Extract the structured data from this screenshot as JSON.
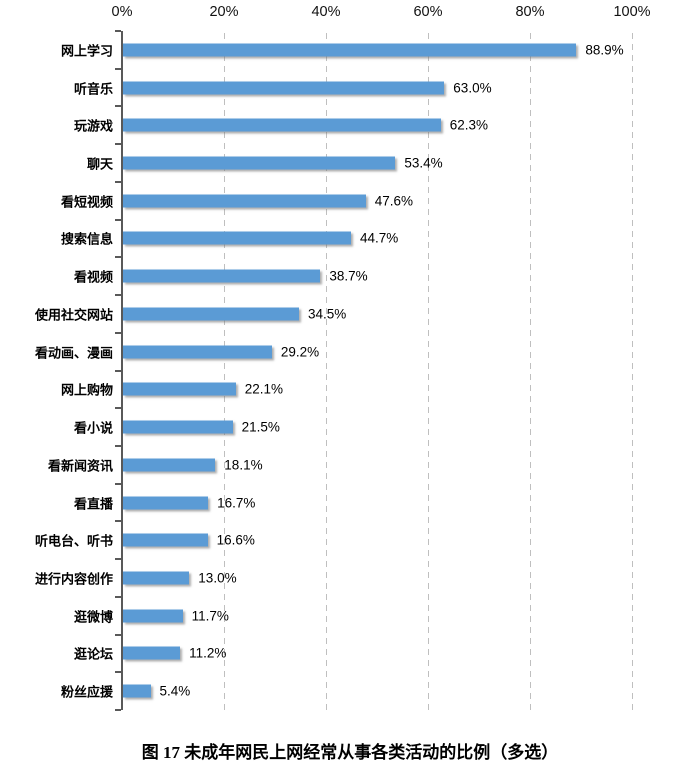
{
  "chart_data": {
    "type": "bar",
    "orientation": "horizontal",
    "title": "",
    "caption": "图 17 未成年网民上网经常从事各类活动的比例（多选）",
    "categories": [
      "网上学习",
      "听音乐",
      "玩游戏",
      "聊天",
      "看短视频",
      "搜索信息",
      "看视频",
      "使用社交网站",
      "看动画、漫画",
      "网上购物",
      "看小说",
      "看新闻资讯",
      "看直播",
      "听电台、听书",
      "进行内容创作",
      "逛微博",
      "逛论坛",
      "粉丝应援"
    ],
    "values": [
      88.9,
      63.0,
      62.3,
      53.4,
      47.6,
      44.7,
      38.7,
      34.5,
      29.2,
      22.1,
      21.5,
      18.1,
      16.7,
      16.6,
      13.0,
      11.7,
      11.2,
      5.4
    ],
    "value_labels": [
      "88.9%",
      "63.0%",
      "62.3%",
      "53.4%",
      "47.6%",
      "44.7%",
      "38.7%",
      "34.5%",
      "29.2%",
      "22.1%",
      "21.5%",
      "18.1%",
      "16.7%",
      "16.6%",
      "13.0%",
      "11.7%",
      "11.2%",
      "5.4%"
    ],
    "x_axis": {
      "position": "top",
      "tick_labels": [
        "0%",
        "20%",
        "40%",
        "60%",
        "80%",
        "100%"
      ],
      "tick_values": [
        0,
        20,
        40,
        60,
        80,
        100
      ],
      "xlim": [
        0,
        100
      ]
    },
    "grid": "dashed-vertical",
    "legend": "none",
    "colors": {
      "bar_fill": "#5B9BD5",
      "axis_line": "#595959",
      "gridline": "#BFBFBF",
      "text": "#000000"
    }
  }
}
